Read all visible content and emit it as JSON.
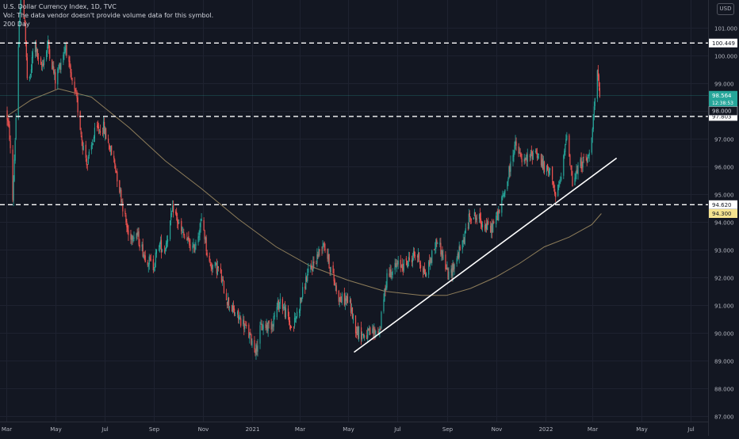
{
  "legend": {
    "title": "U.S. Dollar Currency Index, 1D, TVC",
    "volume_note": "Vol: The data vendor doesn't provide volume data for this symbol.",
    "ma_label": "200 Day"
  },
  "currency_button": "USD",
  "colors": {
    "background": "#131722",
    "grid": "#1e2230",
    "up": "#26a69a",
    "down": "#ef5350",
    "ma": "#8e7d5a",
    "trendline": "#ffffff",
    "axis_text": "#b2b5be"
  },
  "chart_data": {
    "type": "candlestick",
    "symbol": "TVC:DXY",
    "interval": "1D",
    "y_axis": {
      "position": "right",
      "range": [
        86.8,
        102.0
      ],
      "ticks": [
        87.0,
        88.0,
        89.0,
        90.0,
        91.0,
        92.0,
        93.0,
        94.0,
        95.0,
        96.0,
        97.0,
        98.0,
        99.0,
        100.0,
        101.0
      ],
      "tick_labels": [
        "87.000",
        "88.000",
        "89.000",
        "90.000",
        "91.000",
        "92.000",
        "93.000",
        "94.000",
        "95.000",
        "96.000",
        "97.000",
        "98.000",
        "99.000",
        "100.000",
        "101.000"
      ]
    },
    "x_axis": {
      "range": [
        "2020-03-01",
        "2022-07-15"
      ],
      "ticks": [
        {
          "date": "2020-03-01",
          "label": "Mar"
        },
        {
          "date": "2020-05-01",
          "label": "May"
        },
        {
          "date": "2020-07-01",
          "label": "Jul"
        },
        {
          "date": "2020-09-01",
          "label": "Sep"
        },
        {
          "date": "2020-11-01",
          "label": "Nov"
        },
        {
          "date": "2021-01-01",
          "label": "2021"
        },
        {
          "date": "2021-03-01",
          "label": "Mar"
        },
        {
          "date": "2021-05-01",
          "label": "May"
        },
        {
          "date": "2021-07-01",
          "label": "Jul"
        },
        {
          "date": "2021-09-01",
          "label": "Sep"
        },
        {
          "date": "2021-11-01",
          "label": "Nov"
        },
        {
          "date": "2022-01-01",
          "label": "2022"
        },
        {
          "date": "2022-03-01",
          "label": "Mar"
        },
        {
          "date": "2022-05-01",
          "label": "May"
        },
        {
          "date": "2022-07-01",
          "label": "Jul"
        }
      ]
    },
    "price_path": [
      [
        "2020-03-01",
        98.0
      ],
      [
        "2020-03-05",
        97.1
      ],
      [
        "2020-03-09",
        94.8
      ],
      [
        "2020-03-14",
        98.5
      ],
      [
        "2020-03-19",
        102.6
      ],
      [
        "2020-03-24",
        101.2
      ],
      [
        "2020-03-28",
        98.5
      ],
      [
        "2020-04-05",
        100.6
      ],
      [
        "2020-04-12",
        99.4
      ],
      [
        "2020-04-22",
        100.4
      ],
      [
        "2020-05-01",
        99.1
      ],
      [
        "2020-05-14",
        100.4
      ],
      [
        "2020-05-20",
        99.2
      ],
      [
        "2020-05-28",
        98.3
      ],
      [
        "2020-06-04",
        96.8
      ],
      [
        "2020-06-10",
        96.1
      ],
      [
        "2020-06-20",
        97.3
      ],
      [
        "2020-06-30",
        97.4
      ],
      [
        "2020-07-04",
        97.0
      ],
      [
        "2020-07-14",
        96.1
      ],
      [
        "2020-07-22",
        94.9
      ],
      [
        "2020-07-31",
        93.5
      ],
      [
        "2020-08-10",
        93.6
      ],
      [
        "2020-08-20",
        92.8
      ],
      [
        "2020-08-31",
        92.4
      ],
      [
        "2020-09-07",
        93.2
      ],
      [
        "2020-09-14",
        93.0
      ],
      [
        "2020-09-25",
        94.5
      ],
      [
        "2020-10-05",
        93.6
      ],
      [
        "2020-10-20",
        93.0
      ],
      [
        "2020-10-31",
        94.1
      ],
      [
        "2020-11-08",
        92.5
      ],
      [
        "2020-11-20",
        92.3
      ],
      [
        "2020-12-01",
        91.2
      ],
      [
        "2020-12-10",
        90.7
      ],
      [
        "2020-12-20",
        90.4
      ],
      [
        "2021-01-06",
        89.4
      ],
      [
        "2021-01-12",
        90.2
      ],
      [
        "2021-01-25",
        90.3
      ],
      [
        "2021-02-05",
        91.2
      ],
      [
        "2021-02-20",
        90.1
      ],
      [
        "2021-03-01",
        91.0
      ],
      [
        "2021-03-10",
        92.0
      ],
      [
        "2021-03-22",
        92.7
      ],
      [
        "2021-03-31",
        93.3
      ],
      [
        "2021-04-08",
        92.4
      ],
      [
        "2021-04-20",
        91.2
      ],
      [
        "2021-05-01",
        91.2
      ],
      [
        "2021-05-11",
        90.1
      ],
      [
        "2021-05-20",
        89.9
      ],
      [
        "2021-05-31",
        90.0
      ],
      [
        "2021-06-09",
        90.1
      ],
      [
        "2021-06-18",
        92.1
      ],
      [
        "2021-06-30",
        92.4
      ],
      [
        "2021-07-12",
        92.5
      ],
      [
        "2021-07-24",
        92.9
      ],
      [
        "2021-08-05",
        92.1
      ],
      [
        "2021-08-20",
        93.4
      ],
      [
        "2021-09-03",
        92.0
      ],
      [
        "2021-09-20",
        93.2
      ],
      [
        "2021-09-30",
        94.3
      ],
      [
        "2021-10-10",
        94.1
      ],
      [
        "2021-10-25",
        93.7
      ],
      [
        "2021-11-05",
        94.4
      ],
      [
        "2021-11-15",
        95.5
      ],
      [
        "2021-11-24",
        96.8
      ],
      [
        "2021-12-05",
        96.1
      ],
      [
        "2021-12-20",
        96.6
      ],
      [
        "2021-12-31",
        95.9
      ],
      [
        "2022-01-10",
        95.7
      ],
      [
        "2022-01-14",
        94.8
      ],
      [
        "2022-01-22",
        95.7
      ],
      [
        "2022-01-28",
        97.3
      ],
      [
        "2022-02-04",
        95.4
      ],
      [
        "2022-02-14",
        96.1
      ],
      [
        "2022-02-24",
        96.3
      ],
      [
        "2022-03-01",
        97.5
      ],
      [
        "2022-03-07",
        99.3
      ],
      [
        "2022-03-10",
        98.5
      ]
    ],
    "ma_200": {
      "name": "200 Day",
      "points": [
        [
          "2020-03-01",
          97.8
        ],
        [
          "2020-04-01",
          98.4
        ],
        [
          "2020-05-05",
          98.8
        ],
        [
          "2020-06-15",
          98.5
        ],
        [
          "2020-08-01",
          97.4
        ],
        [
          "2020-09-15",
          96.2
        ],
        [
          "2020-10-30",
          95.2
        ],
        [
          "2020-12-15",
          94.1
        ],
        [
          "2021-01-31",
          93.1
        ],
        [
          "2021-03-15",
          92.4
        ],
        [
          "2021-04-30",
          91.9
        ],
        [
          "2021-06-15",
          91.5
        ],
        [
          "2021-07-31",
          91.35
        ],
        [
          "2021-08-31",
          91.35
        ],
        [
          "2021-09-30",
          91.6
        ],
        [
          "2021-10-31",
          92.0
        ],
        [
          "2021-11-30",
          92.5
        ],
        [
          "2021-12-31",
          93.1
        ],
        [
          "2022-01-31",
          93.45
        ],
        [
          "2022-02-28",
          93.9
        ],
        [
          "2022-03-12",
          94.3
        ]
      ]
    },
    "trendline": {
      "from": [
        "2021-05-08",
        89.3
      ],
      "to": [
        "2022-03-31",
        96.3
      ]
    },
    "horizontal_levels": [
      {
        "value": 100.449,
        "label": "100.449"
      },
      {
        "value": 97.803,
        "label": "97.803"
      },
      {
        "value": 94.62,
        "label": "94.620"
      }
    ],
    "price_tags": [
      {
        "value": 98.564,
        "label": "98.564",
        "sub_label": "12:38:53",
        "color": "#26a69a"
      },
      {
        "value": 98.0,
        "label": "98.000",
        "color": "#131722"
      },
      {
        "value": 94.3,
        "label": "94.300",
        "color": "#f5e38f"
      }
    ],
    "last_price": 98.564
  }
}
